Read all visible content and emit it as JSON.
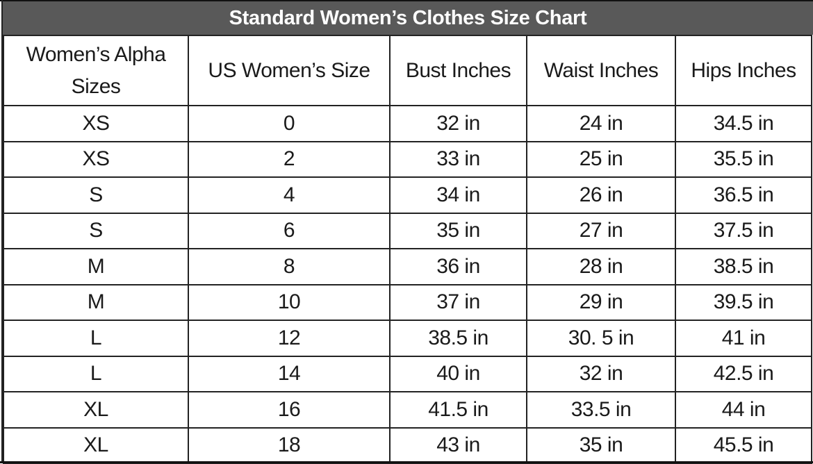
{
  "title": "Standard Women’s Clothes Size Chart",
  "columns": [
    "Women’s Alpha Sizes",
    "US Women’s Size",
    "Bust Inches",
    "Waist Inches",
    "Hips Inches"
  ],
  "rows": [
    [
      "XS",
      "0",
      "32 in",
      "24 in",
      "34.5 in"
    ],
    [
      "XS",
      "2",
      "33 in",
      "25 in",
      "35.5 in"
    ],
    [
      "S",
      "4",
      "34 in",
      "26 in",
      "36.5 in"
    ],
    [
      "S",
      "6",
      "35 in",
      "27 in",
      "37.5 in"
    ],
    [
      "M",
      "8",
      "36 in",
      "28 in",
      "38.5 in"
    ],
    [
      "M",
      "10",
      "37 in",
      "29 in",
      "39.5 in"
    ],
    [
      "L",
      "12",
      "38.5 in",
      "30. 5 in",
      "41 in"
    ],
    [
      "L",
      "14",
      "40 in",
      "32 in",
      "42.5 in"
    ],
    [
      "XL",
      "16",
      "41.5 in",
      "33.5 in",
      "44 in"
    ],
    [
      "XL",
      "18",
      "43 in",
      "35 in",
      "45.5 in"
    ]
  ],
  "colors": {
    "title_bg": "#595959",
    "title_text": "#ffffff",
    "border": "#222222"
  }
}
